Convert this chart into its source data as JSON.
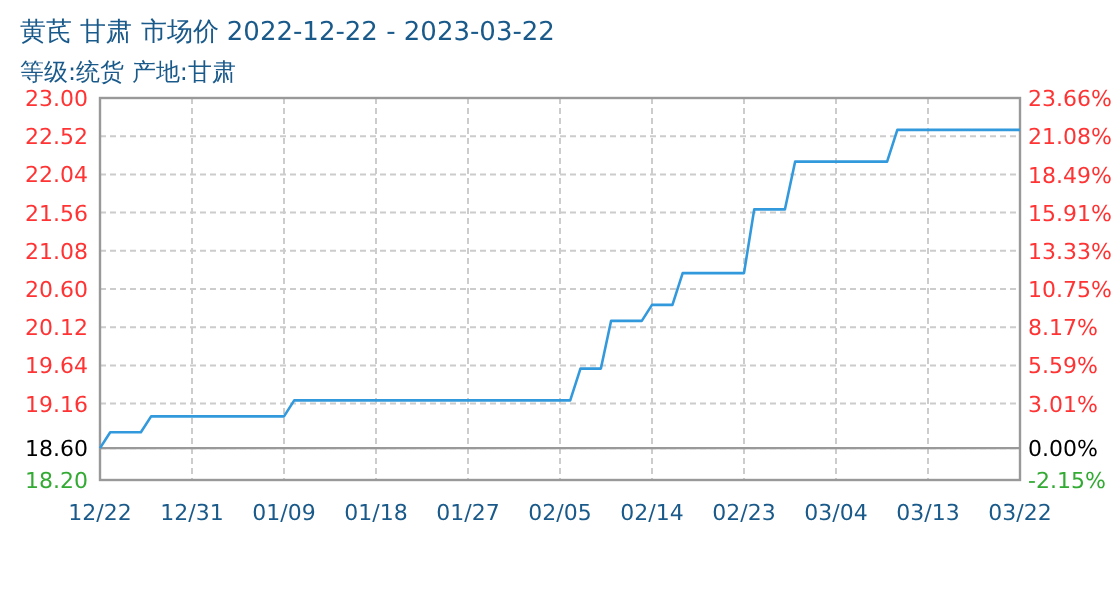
{
  "chart_data": {
    "type": "line",
    "title": "黄芪 甘肃 市场价 2022-12-22 - 2023-03-22",
    "subtitle": "等级:统货 产地:甘肃",
    "series": [
      {
        "color": "#3399dd",
        "x": [
          "2022-12-22",
          "2022-12-23",
          "2022-12-26",
          "2022-12-27",
          "2023-01-09",
          "2023-01-10",
          "2023-02-06",
          "2023-02-07",
          "2023-02-09",
          "2023-02-10",
          "2023-02-13",
          "2023-02-14",
          "2023-02-16",
          "2023-02-17",
          "2023-02-23",
          "2023-02-24",
          "2023-02-27",
          "2023-02-28",
          "2023-03-09",
          "2023-03-10",
          "2023-03-22"
        ],
        "values": [
          18.6,
          18.8,
          18.8,
          19.0,
          19.0,
          19.2,
          19.2,
          19.6,
          19.6,
          20.2,
          20.2,
          20.4,
          20.4,
          20.8,
          20.8,
          21.6,
          21.6,
          22.2,
          22.2,
          22.6,
          22.6
        ]
      }
    ],
    "xlim": [
      "2022-12-22",
      "2023-03-22"
    ],
    "xticks": [
      {
        "value": "2022-12-22",
        "label": "12/22"
      },
      {
        "value": "2022-12-31",
        "label": "12/31"
      },
      {
        "value": "2023-01-09",
        "label": "01/09"
      },
      {
        "value": "2023-01-18",
        "label": "01/18"
      },
      {
        "value": "2023-01-27",
        "label": "01/27"
      },
      {
        "value": "2023-02-05",
        "label": "02/05"
      },
      {
        "value": "2023-02-14",
        "label": "02/14"
      },
      {
        "value": "2023-02-23",
        "label": "02/23"
      },
      {
        "value": "2023-03-04",
        "label": "03/04"
      },
      {
        "value": "2023-03-13",
        "label": "03/13"
      },
      {
        "value": "2023-03-22",
        "label": "03/22"
      }
    ],
    "ylim": [
      18.2,
      23.0
    ],
    "yticks": [
      {
        "value": 18.2,
        "label": "18.20"
      },
      {
        "value": 18.6,
        "label": "18.60"
      },
      {
        "value": 19.16,
        "label": "19.16"
      },
      {
        "value": 19.64,
        "label": "19.64"
      },
      {
        "value": 20.12,
        "label": "20.12"
      },
      {
        "value": 20.6,
        "label": "20.60"
      },
      {
        "value": 21.08,
        "label": "21.08"
      },
      {
        "value": 21.56,
        "label": "21.56"
      },
      {
        "value": 22.04,
        "label": "22.04"
      },
      {
        "value": 22.52,
        "label": "22.52"
      },
      {
        "value": 23.0,
        "label": "23.00"
      }
    ],
    "y2lim": [
      -2.15,
      23.66
    ],
    "y2ticks": [
      {
        "value": -2.15,
        "label": "-2.15%"
      },
      {
        "value": 0,
        "label": "0.00%"
      },
      {
        "value": 3.01,
        "label": "3.01%"
      },
      {
        "value": 5.59,
        "label": "5.59%"
      },
      {
        "value": 8.17,
        "label": "8.17%"
      },
      {
        "value": 10.75,
        "label": "10.75%"
      },
      {
        "value": 13.33,
        "label": "13.33%"
      },
      {
        "value": 15.91,
        "label": "15.91%"
      },
      {
        "value": 18.49,
        "label": "18.49%"
      },
      {
        "value": 21.08,
        "label": "21.08%"
      },
      {
        "value": 23.66,
        "label": "23.66%"
      }
    ],
    "ref_lines": [
      {
        "axis": "y",
        "value": 18.6,
        "color": "#999999"
      }
    ],
    "grid": true,
    "marker": "none",
    "line_style": "solid"
  }
}
